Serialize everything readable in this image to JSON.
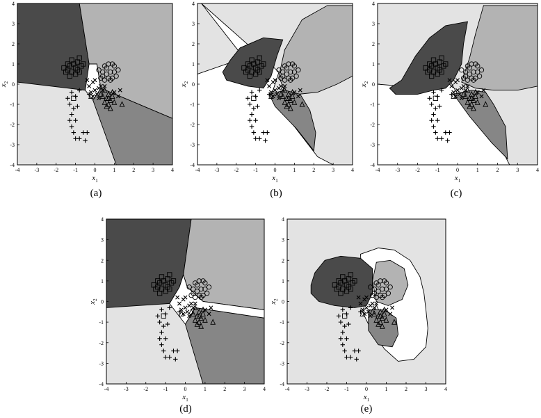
{
  "figure": {
    "panel_labels": [
      "(a)",
      "(b)",
      "(c)",
      "(d)",
      "(e)"
    ]
  },
  "chart_data": [
    {
      "type": "scatter",
      "panel": "(a)",
      "xlabel": "x1",
      "ylabel": "x2",
      "xlim": [
        -4,
        4
      ],
      "ylim": [
        -4,
        4
      ],
      "xticks": [
        -4,
        -3,
        -2,
        -1,
        0,
        1,
        2,
        3,
        4
      ],
      "yticks": [
        -4,
        -3,
        -2,
        -1,
        0,
        1,
        2,
        3,
        4
      ],
      "background": "decision regions (piecewise-linear boundaries)"
    },
    {
      "type": "scatter",
      "panel": "(b)",
      "xlabel": "x1",
      "ylabel": "x2",
      "xlim": [
        -4,
        4
      ],
      "ylim": [
        -4,
        4
      ],
      "xticks": [
        -4,
        -3,
        -2,
        -1,
        0,
        1,
        2,
        3,
        4
      ],
      "yticks": [
        -4,
        -3,
        -2,
        -1,
        0,
        1,
        2,
        3,
        4
      ],
      "background": "decision regions (curved boundaries)"
    },
    {
      "type": "scatter",
      "panel": "(c)",
      "xlabel": "x1",
      "ylabel": "x2",
      "xlim": [
        -4,
        4
      ],
      "ylim": [
        -4,
        4
      ],
      "xticks": [
        -4,
        -3,
        -2,
        -1,
        0,
        1,
        2,
        3,
        4
      ],
      "yticks": [
        -4,
        -3,
        -2,
        -1,
        0,
        1,
        2,
        3,
        4
      ],
      "background": "decision regions (curved boundaries)"
    },
    {
      "type": "scatter",
      "panel": "(d)",
      "xlabel": "x1",
      "ylabel": "x2",
      "xlim": [
        -4,
        4
      ],
      "ylim": [
        -4,
        4
      ],
      "xticks": [
        -4,
        -3,
        -2,
        -1,
        0,
        1,
        2,
        3,
        4
      ],
      "yticks": [
        -4,
        -3,
        -2,
        -1,
        0,
        1,
        2,
        3,
        4
      ],
      "background": "decision regions (piecewise-linear boundaries)"
    },
    {
      "type": "scatter",
      "panel": "(e)",
      "xlabel": "x1",
      "ylabel": "x2",
      "xlim": [
        -4,
        4
      ],
      "ylim": [
        -4,
        4
      ],
      "xticks": [
        -4,
        -3,
        -2,
        -1,
        0,
        1,
        2,
        3,
        4
      ],
      "yticks": [
        -4,
        -3,
        -2,
        -1,
        0,
        1,
        2,
        3,
        4
      ],
      "background": "decision regions (bounded blobs)"
    }
  ],
  "scatter_classes": {
    "square": {
      "marker": "square",
      "points": [
        [
          -1.6,
          0.8
        ],
        [
          -1.4,
          0.7
        ],
        [
          -1.3,
          0.9
        ],
        [
          -1.2,
          0.6
        ],
        [
          -1.1,
          1.0
        ],
        [
          -1.0,
          0.8
        ],
        [
          -0.9,
          0.7
        ],
        [
          -1.2,
          1.2
        ],
        [
          -0.9,
          1.1
        ],
        [
          -0.8,
          1.3
        ],
        [
          -1.5,
          0.6
        ],
        [
          -1.0,
          0.5
        ],
        [
          -0.7,
          0.9
        ],
        [
          -1.3,
          0.4
        ],
        [
          -0.6,
          1.0
        ],
        [
          -1.1,
          -0.7
        ],
        [
          -0.8,
          0.6
        ],
        [
          -1.4,
          1.0
        ]
      ]
    },
    "circle": {
      "marker": "circle",
      "points": [
        [
          0.5,
          0.9
        ],
        [
          0.7,
          1.0
        ],
        [
          0.9,
          1.0
        ],
        [
          0.4,
          0.6
        ],
        [
          0.6,
          0.5
        ],
        [
          0.8,
          0.6
        ],
        [
          1.0,
          0.6
        ],
        [
          1.2,
          0.7
        ],
        [
          0.3,
          0.3
        ],
        [
          0.5,
          0.2
        ],
        [
          0.7,
          0.3
        ],
        [
          0.9,
          0.3
        ],
        [
          1.1,
          0.4
        ],
        [
          0.2,
          0.7
        ],
        [
          1.0,
          0.9
        ],
        [
          0.6,
          0.8
        ],
        [
          0.4,
          0.4
        ],
        [
          0.8,
          0.2
        ]
      ]
    },
    "triangle": {
      "marker": "triangle",
      "points": [
        [
          0.5,
          -0.3
        ],
        [
          0.7,
          -0.5
        ],
        [
          0.6,
          -0.7
        ],
        [
          0.8,
          -0.8
        ],
        [
          0.9,
          -0.6
        ],
        [
          0.4,
          -0.6
        ],
        [
          0.7,
          -1.0
        ],
        [
          0.8,
          -1.2
        ],
        [
          0.6,
          -1.1
        ],
        [
          1.0,
          -0.9
        ],
        [
          1.4,
          -1.0
        ],
        [
          0.3,
          -0.5
        ],
        [
          0.9,
          -0.4
        ],
        [
          0.5,
          -0.9
        ],
        [
          0.7,
          -0.7
        ],
        [
          -0.2,
          -0.6
        ]
      ]
    },
    "plus": {
      "marker": "plus",
      "points": [
        [
          -1.2,
          -0.4
        ],
        [
          -1.0,
          -0.6
        ],
        [
          -0.8,
          -0.3
        ],
        [
          -1.3,
          -1.0
        ],
        [
          -1.1,
          -1.2
        ],
        [
          -1.2,
          -1.5
        ],
        [
          -1.3,
          -1.8
        ],
        [
          -1.0,
          -1.8
        ],
        [
          -1.2,
          -2.1
        ],
        [
          -1.1,
          -2.4
        ],
        [
          -1.0,
          -2.7
        ],
        [
          -0.8,
          -2.7
        ],
        [
          -0.6,
          -2.4
        ],
        [
          -0.4,
          -2.4
        ],
        [
          -1.4,
          -0.7
        ],
        [
          -0.9,
          -1.1
        ],
        [
          -0.5,
          -2.8
        ],
        [
          -0.3,
          -0.5
        ]
      ]
    },
    "cross": {
      "marker": "cross",
      "points": [
        [
          -0.3,
          -0.1
        ],
        [
          -0.1,
          0.1
        ],
        [
          0.0,
          -0.3
        ],
        [
          0.2,
          -0.2
        ],
        [
          -0.2,
          -0.4
        ],
        [
          0.1,
          -0.5
        ],
        [
          0.3,
          -0.1
        ],
        [
          0.4,
          -0.3
        ],
        [
          -0.4,
          0.2
        ],
        [
          0.0,
          0.2
        ],
        [
          1.0,
          -0.4
        ],
        [
          1.2,
          -0.6
        ],
        [
          1.3,
          -0.3
        ],
        [
          0.2,
          -0.7
        ],
        [
          -0.1,
          -0.6
        ],
        [
          0.5,
          -0.1
        ]
      ]
    }
  }
}
